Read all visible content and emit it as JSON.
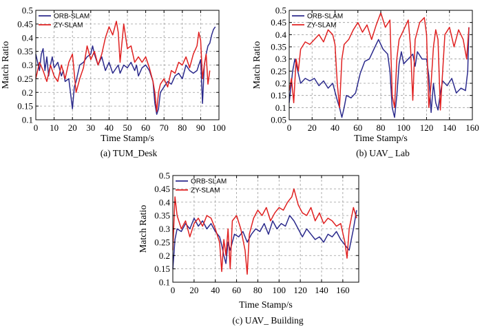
{
  "chart_data": [
    {
      "type": "line",
      "caption": "(a) TUM_Desk",
      "xlabel": "Time Stamp/s",
      "ylabel": "Match Ratio",
      "xlim": [
        0,
        100
      ],
      "ylim": [
        0.1,
        0.5
      ],
      "xticks": [
        0,
        10,
        20,
        30,
        40,
        50,
        60,
        70,
        80,
        90,
        100
      ],
      "yticks": [
        0.1,
        0.15,
        0.2,
        0.25,
        0.3,
        0.35,
        0.4,
        0.45,
        0.5
      ],
      "xtick_labels": [
        "0",
        "10",
        "20",
        "30",
        "40",
        "50",
        "60",
        "70",
        "80",
        "90",
        "100"
      ],
      "ytick_labels": [
        "0.1",
        "0.15",
        "0.2",
        "0.25",
        "0.3",
        "0.35",
        "0.4",
        "0.45",
        "0.5"
      ],
      "grid": true,
      "legend_position": "top-left",
      "series": [
        {
          "name": "ORB-SLAM",
          "color": "#2b2a8c",
          "x": [
            0,
            2,
            3,
            4,
            5,
            6,
            7,
            8,
            9,
            10,
            12,
            14,
            15,
            16,
            18,
            20,
            21,
            22,
            24,
            26,
            28,
            30,
            31,
            32,
            34,
            36,
            38,
            40,
            42,
            44,
            45,
            46,
            48,
            50,
            52,
            54,
            55,
            56,
            58,
            60,
            62,
            63,
            64,
            65,
            66,
            67,
            68,
            70,
            72,
            74,
            76,
            78,
            80,
            82,
            84,
            86,
            88,
            89,
            90,
            91,
            92,
            93,
            94,
            95,
            96,
            97,
            98
          ],
          "y": [
            0.34,
            0.28,
            0.34,
            0.36,
            0.28,
            0.33,
            0.26,
            0.3,
            0.33,
            0.29,
            0.31,
            0.26,
            0.28,
            0.24,
            0.25,
            0.14,
            0.22,
            0.24,
            0.3,
            0.31,
            0.33,
            0.34,
            0.37,
            0.34,
            0.3,
            0.33,
            0.28,
            0.31,
            0.27,
            0.29,
            0.3,
            0.27,
            0.3,
            0.29,
            0.31,
            0.28,
            0.3,
            0.26,
            0.29,
            0.3,
            0.28,
            0.26,
            0.24,
            0.16,
            0.12,
            0.14,
            0.2,
            0.22,
            0.24,
            0.23,
            0.26,
            0.27,
            0.25,
            0.3,
            0.28,
            0.27,
            0.28,
            0.3,
            0.32,
            0.16,
            0.3,
            0.34,
            0.37,
            0.38,
            0.41,
            0.43,
            0.44
          ]
        },
        {
          "name": "ZY-SLAM",
          "color": "#e02020",
          "x": [
            0,
            2,
            4,
            6,
            8,
            10,
            12,
            14,
            16,
            18,
            20,
            22,
            24,
            26,
            28,
            30,
            32,
            34,
            36,
            38,
            40,
            42,
            44,
            45,
            46,
            48,
            50,
            52,
            54,
            56,
            58,
            60,
            62,
            64,
            65,
            66,
            67,
            68,
            70,
            72,
            74,
            76,
            78,
            80,
            82,
            84,
            86,
            88,
            89,
            90,
            91,
            92,
            93,
            94,
            95
          ],
          "y": [
            0.25,
            0.31,
            0.28,
            0.24,
            0.3,
            0.26,
            0.24,
            0.3,
            0.25,
            0.31,
            0.34,
            0.2,
            0.25,
            0.29,
            0.37,
            0.32,
            0.35,
            0.3,
            0.34,
            0.4,
            0.44,
            0.41,
            0.46,
            0.42,
            0.31,
            0.45,
            0.36,
            0.37,
            0.31,
            0.33,
            0.31,
            0.33,
            0.29,
            0.24,
            0.2,
            0.13,
            0.2,
            0.23,
            0.25,
            0.22,
            0.28,
            0.27,
            0.31,
            0.3,
            0.33,
            0.29,
            0.34,
            0.37,
            0.42,
            0.39,
            0.25,
            0.3,
            0.34,
            0.23,
            0.28
          ]
        }
      ]
    },
    {
      "type": "line",
      "caption": "(b) UAV_ Lab",
      "xlabel": "Time Stamp/s",
      "ylabel": "Match Ratio",
      "xlim": [
        0,
        160
      ],
      "ylim": [
        0.05,
        0.5
      ],
      "xticks": [
        0,
        20,
        40,
        60,
        80,
        100,
        120,
        140,
        160
      ],
      "yticks": [
        0.05,
        0.1,
        0.15,
        0.2,
        0.25,
        0.3,
        0.35,
        0.4,
        0.45,
        0.5
      ],
      "xtick_labels": [
        "0",
        "20",
        "40",
        "60",
        "80",
        "100",
        "120",
        "140",
        "160"
      ],
      "ytick_labels": [
        "0.05",
        "0.1",
        "0.15",
        "0.2",
        "0.25",
        "0.3",
        "0.35",
        "0.4",
        "0.45",
        "0.5"
      ],
      "grid": true,
      "legend_position": "top-left",
      "series": [
        {
          "name": "ORB-SLAM",
          "color": "#2b2a8c",
          "x": [
            0,
            3,
            5,
            8,
            10,
            14,
            18,
            22,
            26,
            30,
            34,
            38,
            42,
            44,
            46,
            48,
            50,
            54,
            58,
            62,
            66,
            70,
            74,
            78,
            82,
            86,
            88,
            90,
            92,
            94,
            96,
            98,
            100,
            104,
            108,
            110,
            112,
            116,
            120,
            122,
            124,
            126,
            128,
            130,
            132,
            134,
            138,
            142,
            146,
            150,
            154,
            156,
            157
          ],
          "y": [
            0.12,
            0.25,
            0.3,
            0.24,
            0.2,
            0.22,
            0.21,
            0.22,
            0.19,
            0.21,
            0.18,
            0.2,
            0.13,
            0.1,
            0.06,
            0.1,
            0.15,
            0.14,
            0.16,
            0.24,
            0.29,
            0.3,
            0.34,
            0.38,
            0.34,
            0.32,
            0.25,
            0.1,
            0.06,
            0.15,
            0.28,
            0.33,
            0.28,
            0.3,
            0.32,
            0.27,
            0.33,
            0.3,
            0.3,
            0.23,
            0.08,
            0.2,
            0.12,
            0.09,
            0.16,
            0.21,
            0.19,
            0.22,
            0.16,
            0.18,
            0.17,
            0.25,
            0.43
          ]
        },
        {
          "name": "ZY-SLAM",
          "color": "#e02020",
          "x": [
            0,
            2,
            4,
            6,
            8,
            10,
            14,
            18,
            22,
            26,
            30,
            34,
            38,
            40,
            42,
            44,
            46,
            48,
            52,
            56,
            60,
            64,
            68,
            72,
            76,
            80,
            84,
            88,
            90,
            92,
            94,
            96,
            100,
            104,
            106,
            108,
            110,
            114,
            118,
            120,
            122,
            124,
            126,
            128,
            130,
            132,
            136,
            140,
            144,
            148,
            152,
            155,
            157
          ],
          "y": [
            0.17,
            0.22,
            0.12,
            0.3,
            0.25,
            0.34,
            0.37,
            0.36,
            0.38,
            0.4,
            0.37,
            0.42,
            0.4,
            0.36,
            0.2,
            0.1,
            0.3,
            0.36,
            0.38,
            0.42,
            0.45,
            0.41,
            0.44,
            0.38,
            0.44,
            0.49,
            0.43,
            0.46,
            0.15,
            0.1,
            0.3,
            0.38,
            0.42,
            0.46,
            0.35,
            0.13,
            0.38,
            0.45,
            0.47,
            0.4,
            0.1,
            0.2,
            0.35,
            0.42,
            0.38,
            0.09,
            0.4,
            0.43,
            0.35,
            0.42,
            0.38,
            0.3,
            0.43
          ]
        }
      ]
    },
    {
      "type": "line",
      "caption": "(c) UAV_ Building",
      "xlabel": "Time Stamp/s",
      "ylabel": "Match Ratio",
      "xlim": [
        0,
        175
      ],
      "ylim": [
        0.1,
        0.5
      ],
      "xticks": [
        0,
        20,
        40,
        60,
        80,
        100,
        120,
        140,
        160
      ],
      "yticks": [
        0.1,
        0.15,
        0.2,
        0.25,
        0.3,
        0.35,
        0.4,
        0.45,
        0.5
      ],
      "xtick_labels": [
        "0",
        "20",
        "40",
        "60",
        "80",
        "100",
        "120",
        "140",
        "160"
      ],
      "ytick_labels": [
        "0.1",
        "0.15",
        "0.2",
        "0.25",
        "0.3",
        "0.35",
        "0.4",
        "0.45",
        "0.5"
      ],
      "grid": true,
      "legend_position": "top-left",
      "series": [
        {
          "name": "ORB-SLAM",
          "color": "#2b2a8c",
          "x": [
            0,
            2,
            4,
            8,
            12,
            16,
            20,
            24,
            28,
            32,
            36,
            40,
            44,
            46,
            48,
            50,
            52,
            54,
            58,
            62,
            66,
            70,
            74,
            78,
            82,
            86,
            90,
            94,
            98,
            102,
            106,
            110,
            114,
            118,
            122,
            126,
            130,
            134,
            138,
            142,
            146,
            150,
            154,
            158,
            162,
            166,
            170,
            173
          ],
          "y": [
            0.15,
            0.26,
            0.3,
            0.29,
            0.32,
            0.3,
            0.34,
            0.31,
            0.33,
            0.3,
            0.32,
            0.29,
            0.27,
            0.24,
            0.2,
            0.17,
            0.25,
            0.22,
            0.28,
            0.27,
            0.29,
            0.25,
            0.28,
            0.3,
            0.29,
            0.32,
            0.28,
            0.33,
            0.3,
            0.32,
            0.31,
            0.35,
            0.33,
            0.3,
            0.27,
            0.3,
            0.28,
            0.26,
            0.27,
            0.25,
            0.28,
            0.27,
            0.29,
            0.26,
            0.24,
            0.22,
            0.3,
            0.37
          ]
        },
        {
          "name": "ZY-SLAM",
          "color": "#e02020",
          "x": [
            0,
            2,
            4,
            8,
            12,
            16,
            20,
            24,
            28,
            32,
            36,
            40,
            44,
            46,
            48,
            50,
            52,
            54,
            56,
            60,
            64,
            68,
            70,
            72,
            76,
            80,
            84,
            88,
            92,
            96,
            100,
            104,
            108,
            112,
            114,
            118,
            122,
            126,
            130,
            134,
            138,
            142,
            146,
            150,
            154,
            158,
            162,
            164,
            166,
            170,
            173
          ],
          "y": [
            0.22,
            0.42,
            0.35,
            0.3,
            0.33,
            0.27,
            0.32,
            0.34,
            0.31,
            0.35,
            0.34,
            0.3,
            0.25,
            0.14,
            0.26,
            0.2,
            0.3,
            0.15,
            0.33,
            0.35,
            0.3,
            0.22,
            0.13,
            0.28,
            0.34,
            0.37,
            0.35,
            0.38,
            0.33,
            0.36,
            0.38,
            0.37,
            0.4,
            0.42,
            0.45,
            0.39,
            0.36,
            0.35,
            0.38,
            0.33,
            0.36,
            0.32,
            0.34,
            0.33,
            0.31,
            0.32,
            0.25,
            0.19,
            0.3,
            0.38,
            0.34
          ]
        }
      ]
    }
  ]
}
